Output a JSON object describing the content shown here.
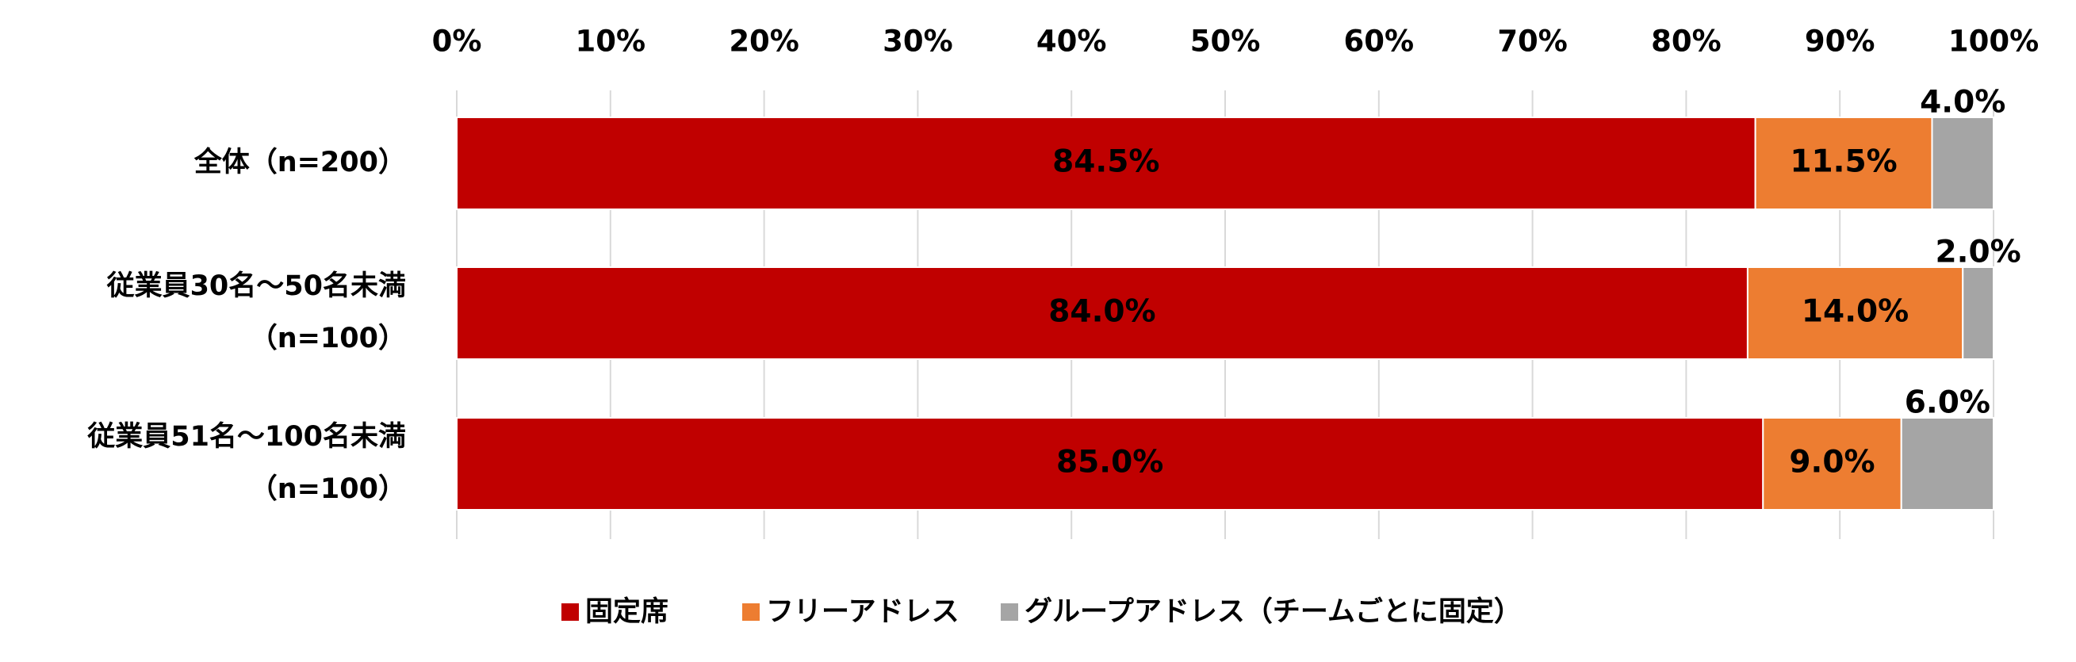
{
  "chart_data": {
    "type": "stacked-bar-horizontal",
    "categories": [
      [
        "全体（n=200）"
      ],
      [
        "従業員30名～50名未満",
        "（n=100）"
      ],
      [
        "従業員51名～100名未満",
        "（n=100）"
      ]
    ],
    "series": [
      {
        "name": "固定席",
        "color": "#c00000",
        "values": [
          84.5,
          84.0,
          85.0
        ],
        "value_labels": [
          "84.5%",
          "84.0%",
          "85.0%"
        ]
      },
      {
        "name": "フリーアドレス",
        "color": "#ed7d31",
        "values": [
          11.5,
          14.0,
          9.0
        ],
        "value_labels": [
          "11.5%",
          "14.0%",
          "9.0%"
        ]
      },
      {
        "name": "グループアドレス（チームごとに固定）",
        "color": "#a5a5a5",
        "values": [
          4.0,
          2.0,
          6.0
        ],
        "value_labels": [
          "4.0%",
          "2.0%",
          "6.0%"
        ]
      }
    ],
    "xlim": [
      0,
      100
    ],
    "xticks": [
      {
        "value": 0,
        "label": "0%"
      },
      {
        "value": 10,
        "label": "10%"
      },
      {
        "value": 20,
        "label": "20%"
      },
      {
        "value": 30,
        "label": "30%"
      },
      {
        "value": 40,
        "label": "40%"
      },
      {
        "value": 50,
        "label": "50%"
      },
      {
        "value": 60,
        "label": "60%"
      },
      {
        "value": 70,
        "label": "70%"
      },
      {
        "value": 80,
        "label": "80%"
      },
      {
        "value": 90,
        "label": "90%"
      },
      {
        "value": 100,
        "label": "100%"
      }
    ],
    "grid": true,
    "legend": "bottom"
  }
}
